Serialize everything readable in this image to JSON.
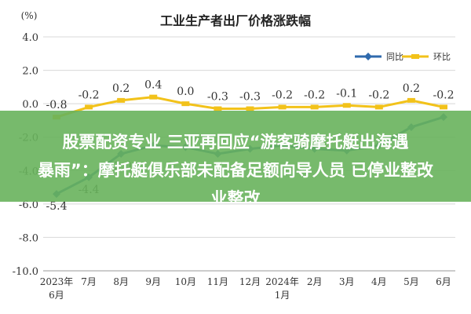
{
  "chart_data": {
    "type": "line",
    "title": "工业生产者出厂价格涨跌幅",
    "ylabel": "(%)",
    "ylim": [
      -10.0,
      4.0
    ],
    "yticks": [
      "4.0",
      "2.0",
      "0.0",
      "-2.0",
      "-4.0",
      "-6.0",
      "-8.0",
      "-10.0"
    ],
    "categories": [
      "2023年\n6月",
      "7月",
      "8月",
      "9月",
      "10月",
      "11月",
      "12月",
      "2024年\n1月",
      "2月",
      "3月",
      "4月",
      "5月",
      "6月"
    ],
    "series": [
      {
        "name": "同比",
        "color": "#2f6aad",
        "values": [
          -5.4,
          -4.4,
          -3.0,
          -2.5,
          -2.6,
          -3.0,
          -2.7,
          -2.5,
          -2.7,
          -2.8,
          -2.5,
          -1.4,
          -0.8
        ],
        "labels": [
          "-5.4",
          "-4.4",
          "-3.0",
          "",
          "",
          "",
          "",
          "",
          "",
          "",
          "",
          "",
          ""
        ]
      },
      {
        "name": "环比",
        "color": "#f2c21a",
        "values": [
          -0.8,
          -0.2,
          0.2,
          0.4,
          0.0,
          -0.3,
          -0.3,
          -0.2,
          -0.2,
          -0.1,
          -0.2,
          0.2,
          -0.2
        ],
        "labels": [
          "-0.8",
          "-0.2",
          "0.2",
          "0.4",
          "0.0",
          "-0.3",
          "-0.3",
          "-0.2",
          "-0.2",
          "-0.1",
          "-0.2",
          "0.2",
          "-0.2"
        ]
      }
    ],
    "grid": true,
    "legend": "top-right"
  },
  "overlay": {
    "line1": "股票配资专业 三亚再回应“游客骑摩托艇出海遇",
    "line2": "暴雨”：摩托艇俱乐部未配备足额向导人员 已停业整改",
    "line3": "业整改",
    "color": "#68b25c"
  }
}
